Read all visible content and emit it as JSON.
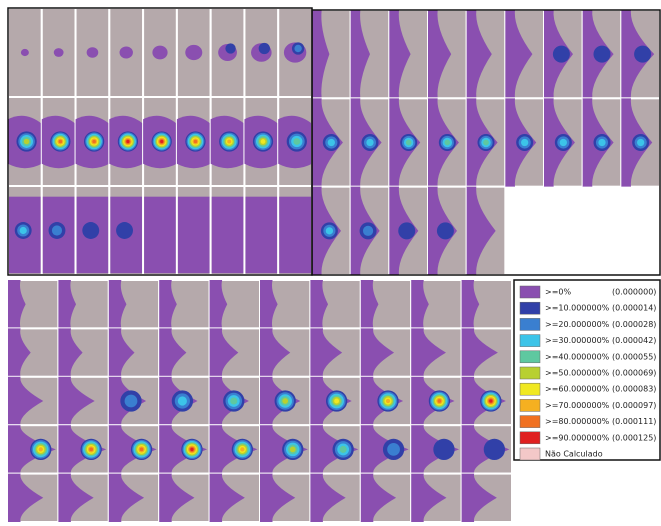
{
  "legend": {
    "items": [
      {
        "label": ">=0%",
        "value": "(0.000000)",
        "color": "#8a4fb0"
      },
      {
        "label": ">=10.000000%",
        "value": "(0.000014)",
        "color": "#3140a8"
      },
      {
        "label": ">=20.000000%",
        "value": "(0.000028)",
        "color": "#3a7fd0"
      },
      {
        "label": ">=30.000000%",
        "value": "(0.000042)",
        "color": "#3cc4e8"
      },
      {
        "label": ">=40.000000%",
        "value": "(0.000055)",
        "color": "#5ec8a0"
      },
      {
        "label": ">=50.000000%",
        "value": "(0.000069)",
        "color": "#b8d030"
      },
      {
        "label": ">=60.000000%",
        "value": "(0.000083)",
        "color": "#f0e820"
      },
      {
        "label": ">=70.000000%",
        "value": "(0.000097)",
        "color": "#f5b020"
      },
      {
        "label": ">=80.000000%",
        "value": "(0.000111)",
        "color": "#f07020"
      },
      {
        "label": ">=90.000000%",
        "value": "(0.000125)",
        "color": "#e02020"
      },
      {
        "label": "Não Calculado",
        "color": "#f3c8c8"
      }
    ]
  }
}
